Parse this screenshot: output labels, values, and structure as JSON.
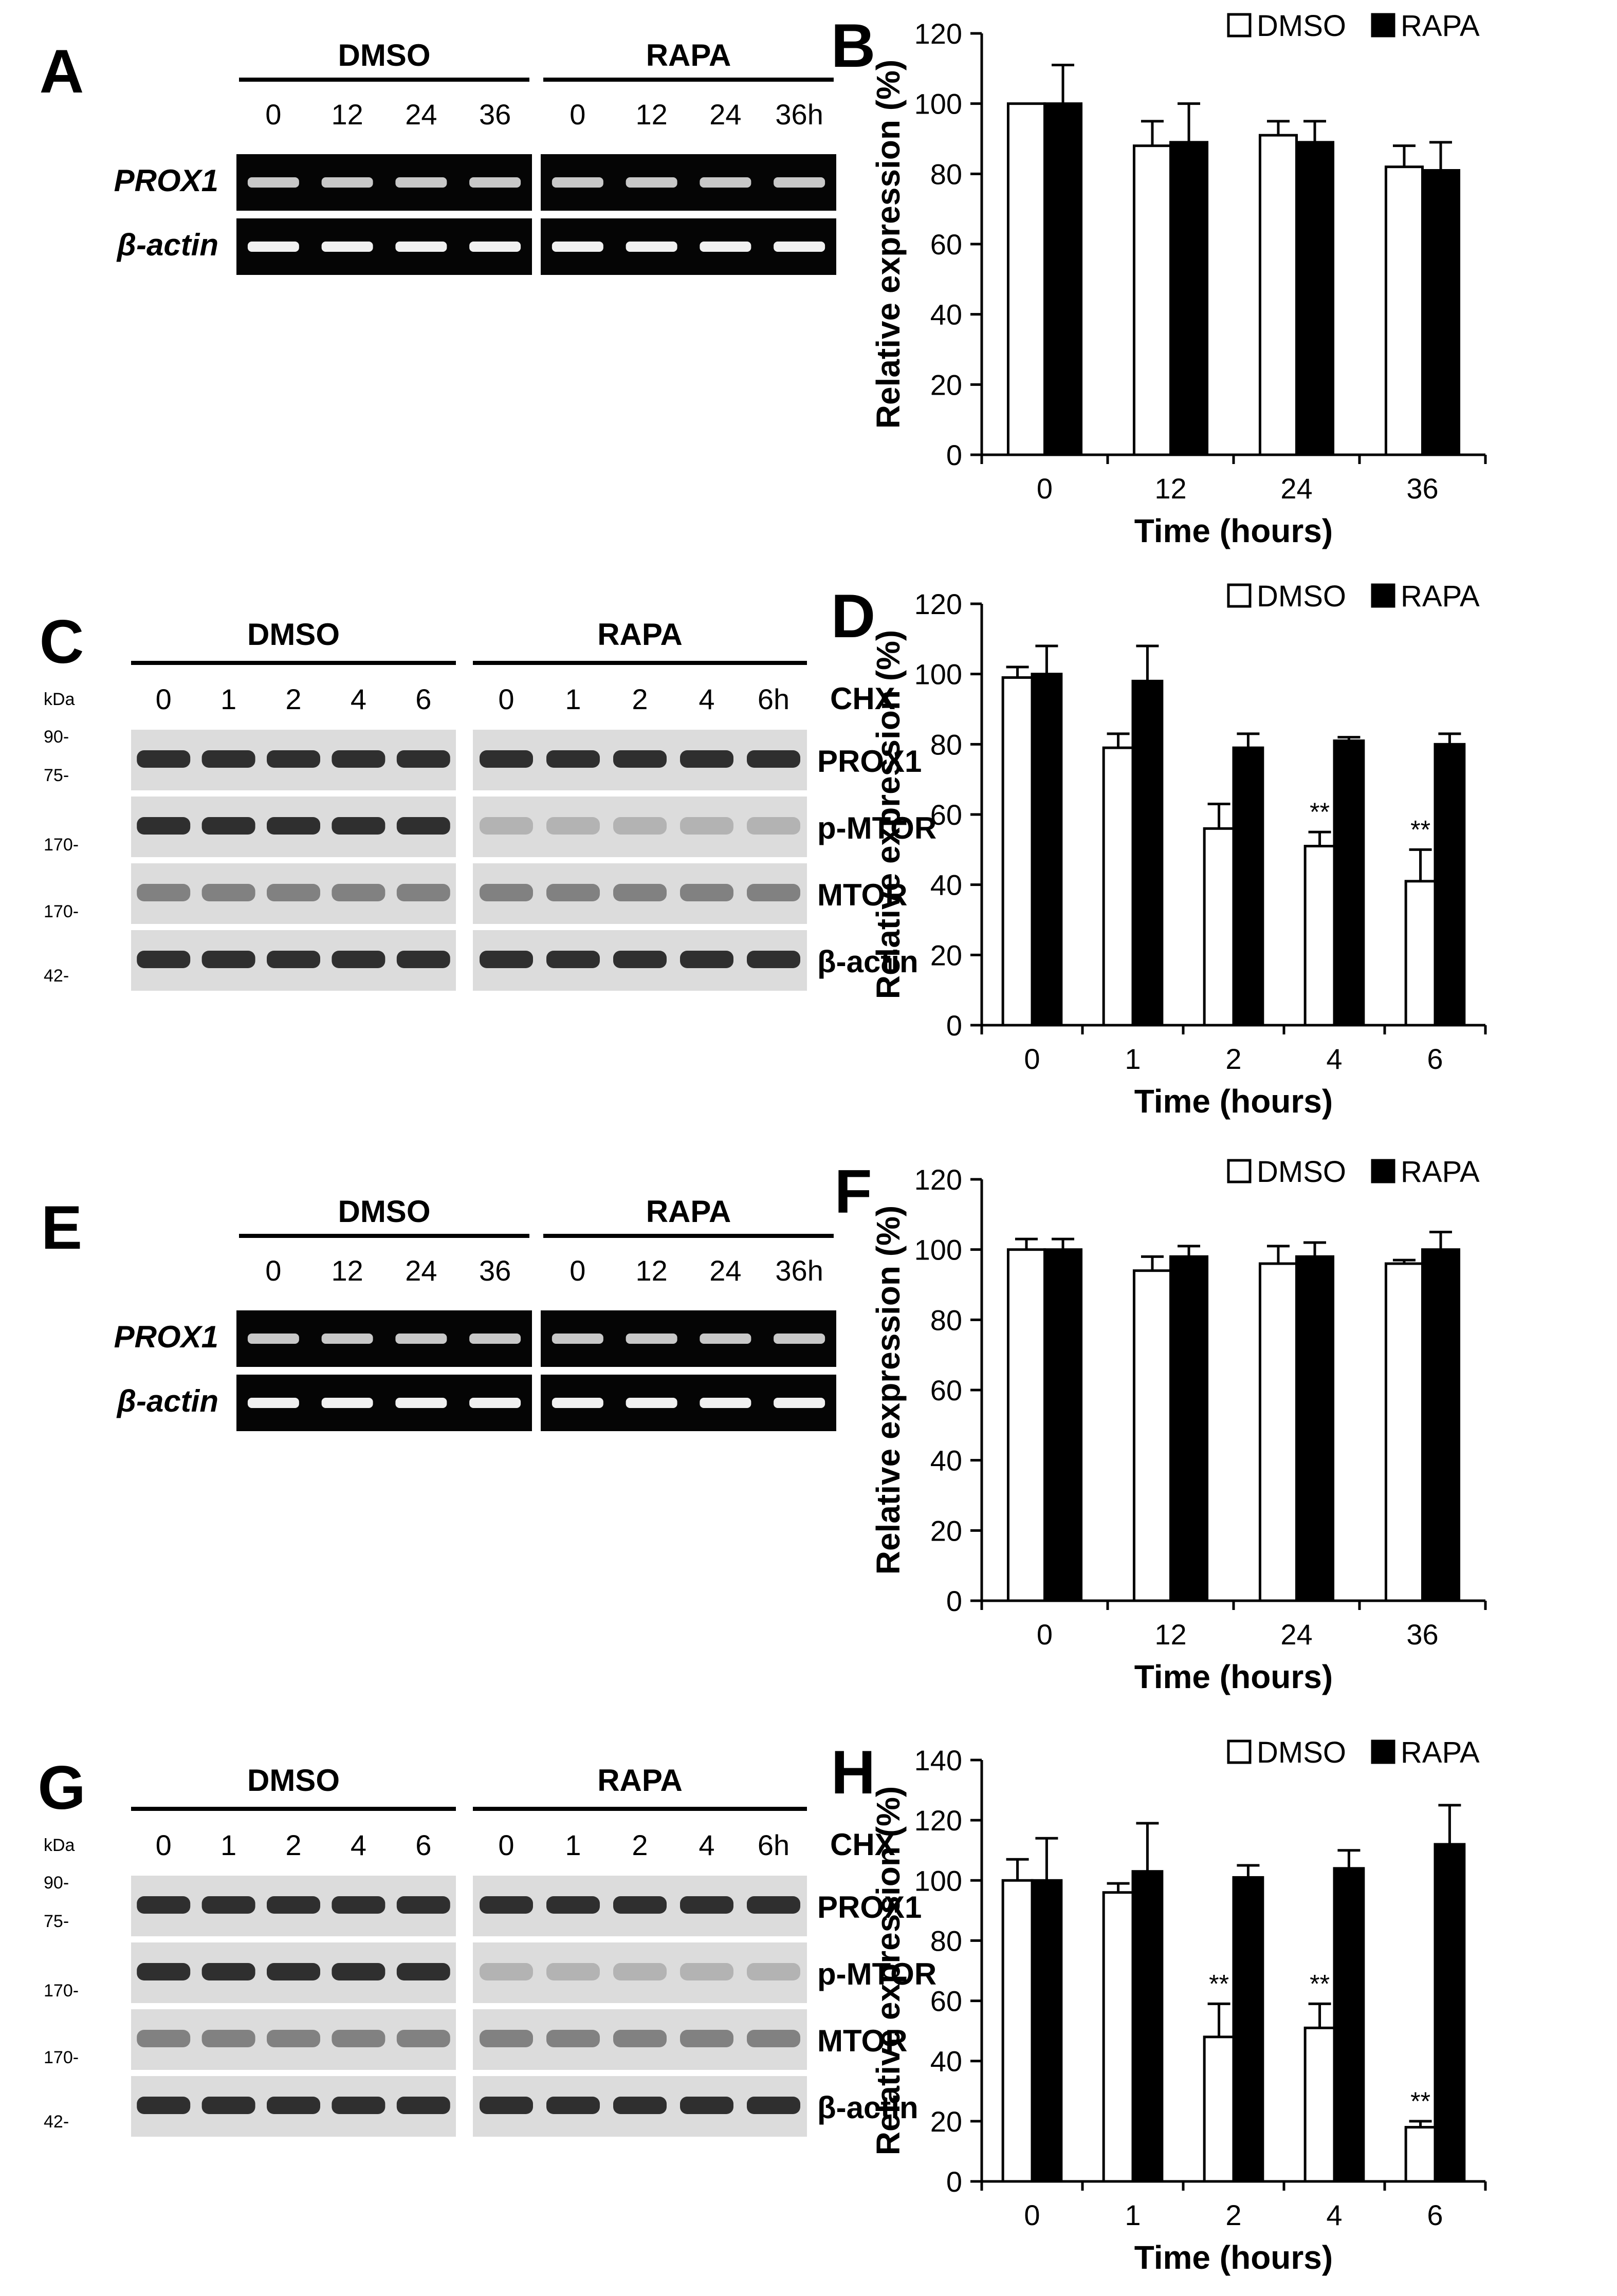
{
  "panels": {
    "A": {
      "letter": "A",
      "groups": [
        "DMSO",
        "RAPA"
      ],
      "lanes": [
        [
          "0",
          "12",
          "24",
          "36"
        ],
        [
          "0",
          "12",
          "24",
          "36h"
        ]
      ],
      "rows": [
        "PROX1",
        "β-actin"
      ]
    },
    "C": {
      "letter": "C",
      "groups": [
        "DMSO",
        "RAPA"
      ],
      "lanes": [
        [
          "0",
          "1",
          "2",
          "4",
          "6"
        ],
        [
          "0",
          "1",
          "2",
          "4",
          "6h"
        ]
      ],
      "treatment": "CHX",
      "kda_label": "kDa",
      "rows": [
        "PROX1",
        "p-MTOR",
        "MTOR",
        "β-actin"
      ],
      "markers": [
        "90-",
        "75-",
        "170-",
        "170-",
        "42-"
      ]
    },
    "E": {
      "letter": "E",
      "groups": [
        "DMSO",
        "RAPA"
      ],
      "lanes": [
        [
          "0",
          "12",
          "24",
          "36"
        ],
        [
          "0",
          "12",
          "24",
          "36h"
        ]
      ],
      "rows": [
        "PROX1",
        "β-actin"
      ]
    },
    "G": {
      "letter": "G",
      "groups": [
        "DMSO",
        "RAPA"
      ],
      "lanes": [
        [
          "0",
          "1",
          "2",
          "4",
          "6"
        ],
        [
          "0",
          "1",
          "2",
          "4",
          "6h"
        ]
      ],
      "treatment": "CHX",
      "kda_label": "kDa",
      "rows": [
        "PROX1",
        "p-MTOR",
        "MTOR",
        "β-actin"
      ],
      "markers": [
        "90-",
        "75-",
        "170-",
        "170-",
        "42-"
      ]
    }
  },
  "chart_data": [
    {
      "panel": "B",
      "type": "bar",
      "categories": [
        "0",
        "12",
        "24",
        "36"
      ],
      "series": [
        {
          "name": "DMSO",
          "values": [
            100,
            88,
            91,
            82
          ],
          "errors": [
            0,
            7,
            4,
            6
          ]
        },
        {
          "name": "RAPA",
          "values": [
            100,
            89,
            89,
            81
          ],
          "errors": [
            11,
            11,
            6,
            8
          ]
        }
      ],
      "significance": [
        "",
        "",
        "",
        ""
      ],
      "xlabel": "Time (hours)",
      "ylabel": "Relative expression (%)",
      "ylim": [
        0,
        120
      ],
      "yticks": [
        0,
        20,
        40,
        60,
        80,
        100,
        120
      ],
      "legend": "top-right",
      "colors": {
        "DMSO": "#ffffff",
        "RAPA": "#000000"
      }
    },
    {
      "panel": "D",
      "type": "bar",
      "categories": [
        "0",
        "1",
        "2",
        "4",
        "6"
      ],
      "series": [
        {
          "name": "DMSO",
          "values": [
            99,
            79,
            56,
            51,
            41
          ],
          "errors": [
            3,
            4,
            7,
            4,
            9
          ]
        },
        {
          "name": "RAPA",
          "values": [
            100,
            98,
            79,
            81,
            80
          ],
          "errors": [
            8,
            10,
            4,
            1,
            3
          ]
        }
      ],
      "significance": [
        "",
        "",
        "",
        "**",
        "**"
      ],
      "xlabel": "Time (hours)",
      "ylabel": "Relative expression (%)",
      "ylim": [
        0,
        120
      ],
      "yticks": [
        0,
        20,
        40,
        60,
        80,
        100,
        120
      ],
      "legend": "top-right",
      "colors": {
        "DMSO": "#ffffff",
        "RAPA": "#000000"
      }
    },
    {
      "panel": "F",
      "type": "bar",
      "categories": [
        "0",
        "12",
        "24",
        "36"
      ],
      "series": [
        {
          "name": "DMSO",
          "values": [
            100,
            94,
            96,
            96
          ],
          "errors": [
            3,
            4,
            5,
            1
          ]
        },
        {
          "name": "RAPA",
          "values": [
            100,
            98,
            98,
            100
          ],
          "errors": [
            3,
            3,
            4,
            5
          ]
        }
      ],
      "significance": [
        "",
        "",
        "",
        ""
      ],
      "xlabel": "Time (hours)",
      "ylabel": "Relative expression (%)",
      "ylim": [
        0,
        120
      ],
      "yticks": [
        0,
        20,
        40,
        60,
        80,
        100,
        120
      ],
      "legend": "top-right",
      "colors": {
        "DMSO": "#ffffff",
        "RAPA": "#000000"
      }
    },
    {
      "panel": "H",
      "type": "bar",
      "categories": [
        "0",
        "1",
        "2",
        "4",
        "6"
      ],
      "series": [
        {
          "name": "DMSO",
          "values": [
            100,
            96,
            48,
            51,
            18
          ],
          "errors": [
            7,
            3,
            11,
            8,
            2
          ]
        },
        {
          "name": "RAPA",
          "values": [
            100,
            103,
            101,
            104,
            112
          ],
          "errors": [
            14,
            16,
            4,
            6,
            13
          ]
        }
      ],
      "significance": [
        "",
        "",
        "**",
        "**",
        "**"
      ],
      "xlabel": "Time (hours)",
      "ylabel": "Relative expression (%)",
      "ylim": [
        0,
        140
      ],
      "yticks": [
        0,
        20,
        40,
        60,
        80,
        100,
        120,
        140
      ],
      "legend": "top-right",
      "colors": {
        "DMSO": "#ffffff",
        "RAPA": "#000000"
      }
    }
  ]
}
